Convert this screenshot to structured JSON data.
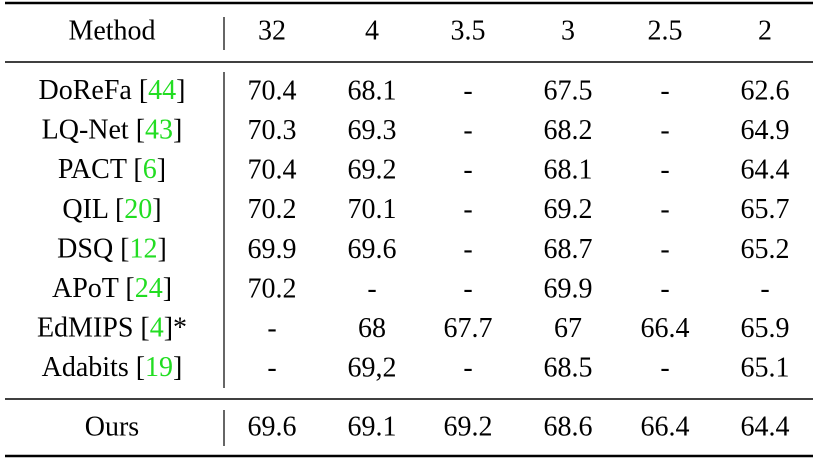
{
  "table": {
    "header": [
      "Method",
      "32",
      "4",
      "3.5",
      "3",
      "2.5",
      "2"
    ],
    "rows": [
      [
        "DoReFa [44]",
        "70.4",
        "68.1",
        "-",
        "67.5",
        "-",
        "62.6"
      ],
      [
        "LQ-Net [43]",
        "70.3",
        "69.3",
        "-",
        "68.2",
        "-",
        "64.9"
      ],
      [
        "PACT [6]",
        "70.4",
        "69.2",
        "-",
        "68.1",
        "-",
        "64.4"
      ],
      [
        "QIL [20]",
        "70.2",
        "70.1",
        "-",
        "69.2",
        "-",
        "65.7"
      ],
      [
        "DSQ [12]",
        "69.9",
        "69.6",
        "-",
        "68.7",
        "-",
        "65.2"
      ],
      [
        "APoT [24]",
        "70.2",
        "-",
        "-",
        "69.9",
        "-",
        "-"
      ],
      [
        "EdMIPS [4]*",
        "-",
        "68",
        "67.7",
        "67",
        "66.4",
        "65.9"
      ],
      [
        "Adabits [19]",
        "-",
        "69,2",
        "-",
        "68.5",
        "-",
        "65.1"
      ]
    ],
    "footer": [
      "Ours",
      "69.6",
      "69.1",
      "69.2",
      "68.6",
      "66.4",
      "64.4"
    ]
  }
}
